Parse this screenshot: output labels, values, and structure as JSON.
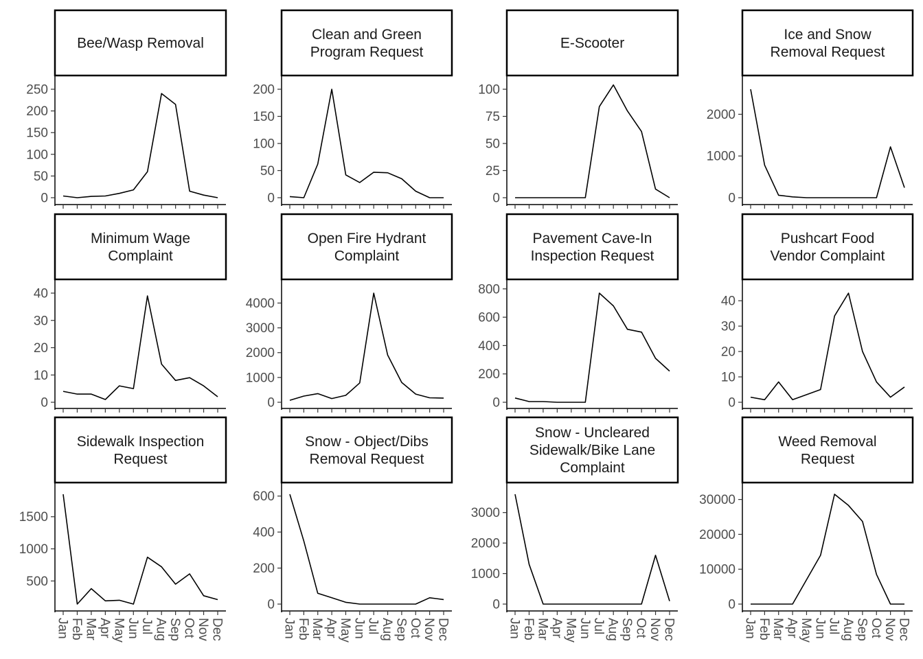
{
  "chart_data": {
    "type": "line",
    "layout": "facet-grid",
    "months": [
      "Jan",
      "Feb",
      "Mar",
      "Apr",
      "May",
      "Jun",
      "Jul",
      "Aug",
      "Sep",
      "Oct",
      "Nov",
      "Dec"
    ],
    "facets": [
      {
        "title": "Bee/Wasp Removal",
        "yticks": [
          0,
          50,
          100,
          150,
          200,
          250
        ],
        "ylim": [
          0,
          250
        ],
        "show_x": false,
        "values": [
          4,
          0,
          3,
          4,
          10,
          18,
          60,
          240,
          215,
          15,
          6,
          0
        ]
      },
      {
        "title": "Clean and Green\nProgram Request",
        "yticks": [
          0,
          50,
          100,
          150,
          200
        ],
        "ylim": [
          0,
          200
        ],
        "show_x": false,
        "values": [
          2,
          0,
          62,
          200,
          42,
          28,
          47,
          46,
          35,
          12,
          0,
          0
        ]
      },
      {
        "title": "E-Scooter",
        "yticks": [
          0,
          25,
          50,
          75,
          100
        ],
        "ylim": [
          0,
          100
        ],
        "show_x": false,
        "values": [
          0,
          0,
          0,
          0,
          0,
          0,
          84,
          104,
          80,
          61,
          8,
          0
        ]
      },
      {
        "title": "Ice and Snow\nRemoval Request",
        "yticks": [
          0,
          1000,
          2000
        ],
        "ylim": [
          0,
          2600
        ],
        "show_x": false,
        "values": [
          2600,
          780,
          60,
          20,
          0,
          0,
          0,
          0,
          0,
          0,
          1220,
          240
        ]
      },
      {
        "title": "Minimum Wage\nComplaint",
        "yticks": [
          0,
          10,
          20,
          30,
          40
        ],
        "ylim": [
          0,
          40
        ],
        "show_x": false,
        "values": [
          4,
          3,
          3,
          1,
          6,
          5,
          39,
          14,
          8,
          9,
          6,
          2
        ]
      },
      {
        "title": "Open Fire Hydrant\nComplaint",
        "yticks": [
          0,
          1000,
          2000,
          3000,
          4000
        ],
        "ylim": [
          0,
          4400
        ],
        "show_x": false,
        "values": [
          80,
          250,
          350,
          150,
          280,
          780,
          4400,
          1900,
          800,
          330,
          180,
          170
        ]
      },
      {
        "title": "Pavement Cave-In\nInspection Request",
        "yticks": [
          0,
          200,
          400,
          600,
          800
        ],
        "ylim": [
          0,
          770
        ],
        "show_x": false,
        "values": [
          30,
          5,
          5,
          0,
          0,
          0,
          770,
          680,
          515,
          495,
          310,
          220
        ]
      },
      {
        "title": "Pushcart Food\nVendor Complaint",
        "yticks": [
          0,
          10,
          20,
          30,
          40
        ],
        "ylim": [
          0,
          43
        ],
        "show_x": false,
        "values": [
          2,
          1,
          8,
          1,
          3,
          5,
          34,
          43,
          20,
          8,
          2,
          6
        ]
      },
      {
        "title": "Sidewalk Inspection\nRequest",
        "yticks": [
          500,
          1000,
          1500
        ],
        "ylim": [
          140,
          1850
        ],
        "show_x": true,
        "values": [
          1850,
          140,
          380,
          190,
          200,
          140,
          870,
          720,
          450,
          610,
          270,
          210
        ]
      },
      {
        "title": "Snow - Object/Dibs\nRemoval Request",
        "yticks": [
          0,
          200,
          400,
          600
        ],
        "ylim": [
          0,
          610
        ],
        "show_x": true,
        "values": [
          610,
          350,
          60,
          35,
          10,
          0,
          0,
          0,
          0,
          0,
          35,
          25
        ]
      },
      {
        "title": "Snow - Uncleared\nSidewalk/Bike Lane\nComplaint",
        "yticks": [
          0,
          1000,
          2000,
          3000
        ],
        "ylim": [
          0,
          3600
        ],
        "show_x": true,
        "values": [
          3600,
          1300,
          0,
          0,
          0,
          0,
          0,
          0,
          0,
          0,
          1600,
          100
        ]
      },
      {
        "title": "Weed Removal\nRequest",
        "yticks": [
          0,
          10000,
          20000,
          30000
        ],
        "ylim": [
          0,
          31500
        ],
        "show_x": true,
        "values": [
          0,
          0,
          0,
          0,
          7000,
          14000,
          31500,
          28300,
          23700,
          8500,
          0,
          0
        ]
      }
    ]
  }
}
